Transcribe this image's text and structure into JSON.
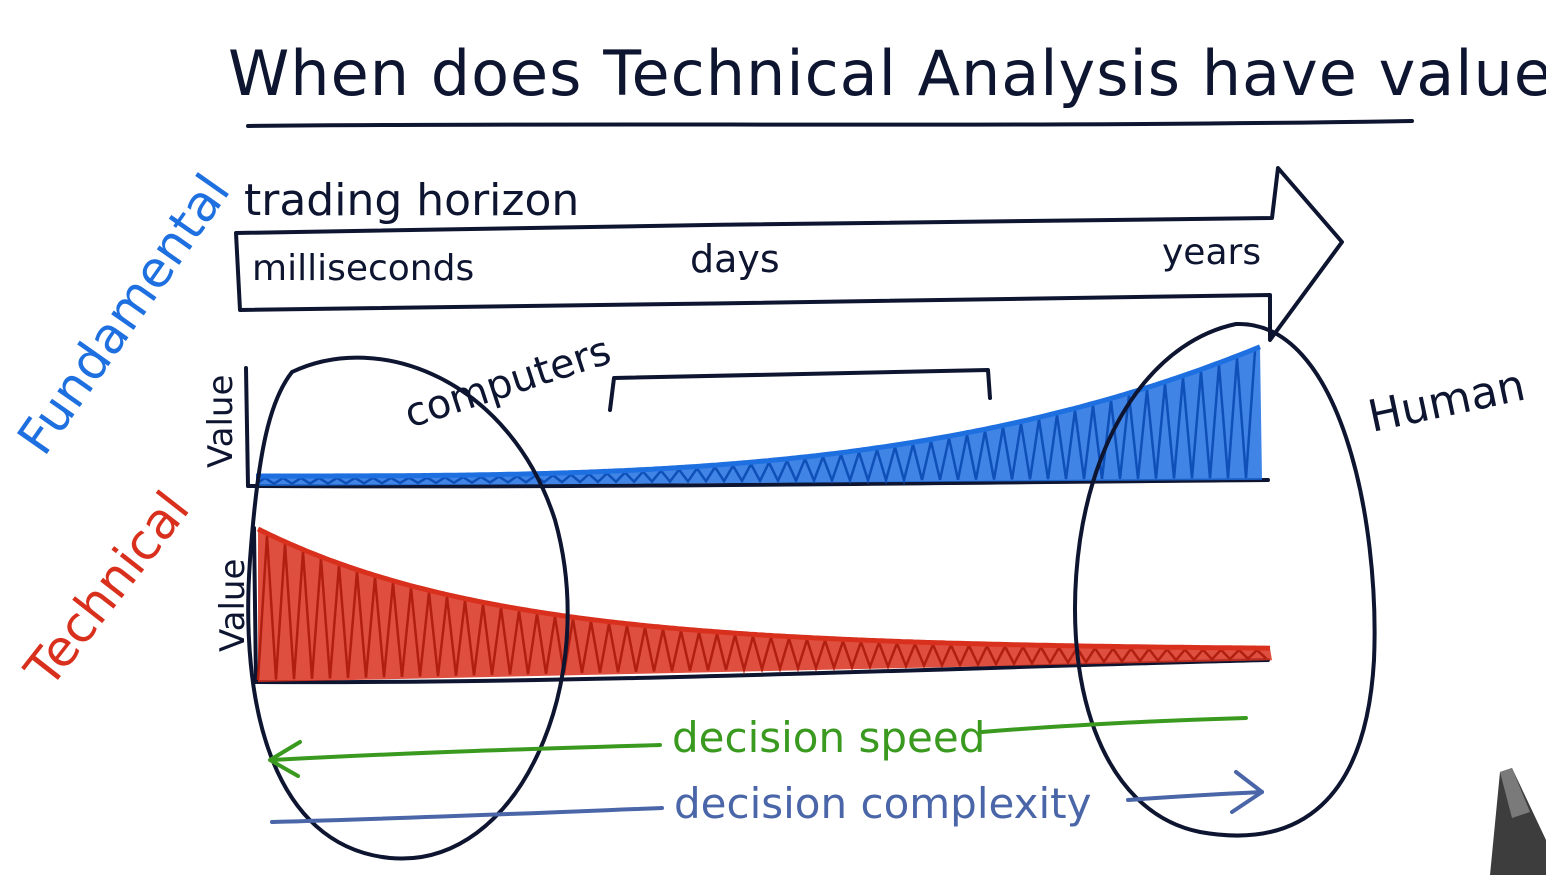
{
  "title": "When does Technical Analysis have value?",
  "horizon": {
    "label": "trading horizon",
    "ticks": [
      "milliseconds",
      "days",
      "years"
    ]
  },
  "fundamental": {
    "label": "Fundamental",
    "axis_label": "Value",
    "color": "#1e6fe0",
    "trend": "increases with trading horizon"
  },
  "technical": {
    "label": "Technical",
    "axis_label": "Value",
    "color": "#d9301e",
    "trend": "decreases with trading horizon"
  },
  "computers_label": "computers",
  "human_label": "Human",
  "decision_speed": {
    "label": "decision speed",
    "color": "#3a9a1f",
    "direction": "left"
  },
  "decision_complexity": {
    "label": "decision complexity",
    "color": "#4a66a8",
    "direction": "right"
  },
  "colors": {
    "ink": "#0e1530",
    "background": "#ffffff"
  }
}
